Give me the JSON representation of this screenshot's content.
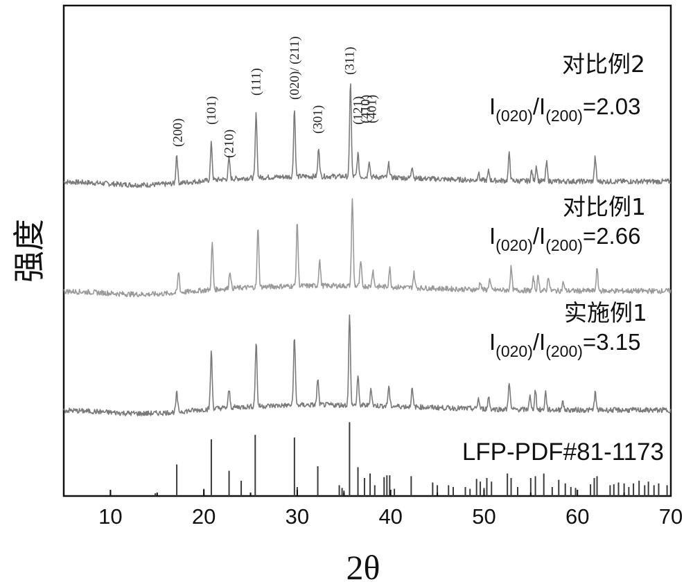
{
  "chart_data": {
    "type": "line",
    "title": "",
    "xlabel": "2θ",
    "ylabel": "强度",
    "xlim": [
      5,
      70
    ],
    "xticks": [
      10,
      20,
      30,
      40,
      50,
      60,
      70
    ],
    "grid": false,
    "peak_labels": [
      {
        "text": "(200)",
        "x": 17.2
      },
      {
        "text": "(101)",
        "x": 20.8
      },
      {
        "text": "(210)",
        "x": 22.7
      },
      {
        "text": "(111)",
        "x": 25.6
      },
      {
        "text": "(020)/ (211)",
        "x": 29.7
      },
      {
        "text": "(301)",
        "x": 32.2
      },
      {
        "text": "(311)",
        "x": 35.6
      },
      {
        "text": "(121)",
        "x": 36.5
      },
      {
        "text": "(410)",
        "x": 37.3
      },
      {
        "text": "(401)",
        "x": 38.0
      }
    ],
    "series": [
      {
        "name": "对比例2",
        "ratio_label": {
          "prefix": "I",
          "sub1": "(020)",
          "mid": "/I",
          "sub2": "(200)",
          "value": "=2.03"
        },
        "color": "#7a7a7a",
        "peaks": [
          [
            17.1,
            0.28
          ],
          [
            20.8,
            0.36
          ],
          [
            22.7,
            0.2
          ],
          [
            25.6,
            0.62
          ],
          [
            29.7,
            0.65
          ],
          [
            32.3,
            0.28
          ],
          [
            35.7,
            0.92
          ],
          [
            36.5,
            0.22
          ],
          [
            37.7,
            0.16
          ],
          [
            39.8,
            0.13
          ],
          [
            42.3,
            0.12
          ],
          [
            49.4,
            0.07
          ],
          [
            50.5,
            0.09
          ],
          [
            52.7,
            0.26
          ],
          [
            55.1,
            0.1
          ],
          [
            55.6,
            0.15
          ],
          [
            56.7,
            0.18
          ],
          [
            61.9,
            0.23
          ]
        ]
      },
      {
        "name": "对比例1",
        "ratio_label": {
          "prefix": "I",
          "sub1": "(020)",
          "mid": "/I",
          "sub2": "(200)",
          "value": "=2.66"
        },
        "color": "#9a9a9a",
        "peaks": [
          [
            17.3,
            0.2
          ],
          [
            20.9,
            0.45
          ],
          [
            22.8,
            0.17
          ],
          [
            25.8,
            0.58
          ],
          [
            30.0,
            0.62
          ],
          [
            32.4,
            0.25
          ],
          [
            35.9,
            0.85
          ],
          [
            36.8,
            0.23
          ],
          [
            38.1,
            0.16
          ],
          [
            39.9,
            0.18
          ],
          [
            42.5,
            0.14
          ],
          [
            49.6,
            0.08
          ],
          [
            50.6,
            0.1
          ],
          [
            52.9,
            0.22
          ],
          [
            55.3,
            0.12
          ],
          [
            55.8,
            0.14
          ],
          [
            56.9,
            0.14
          ],
          [
            58.5,
            0.08
          ],
          [
            62.1,
            0.21
          ]
        ]
      },
      {
        "name": "实施例1",
        "ratio_label": {
          "prefix": "I",
          "sub1": "(020)",
          "mid": "/I",
          "sub2": "(200)",
          "value": "=3.15"
        },
        "color": "#7a7a7a",
        "peaks": [
          [
            17.1,
            0.18
          ],
          [
            20.8,
            0.55
          ],
          [
            22.7,
            0.17
          ],
          [
            25.6,
            0.62
          ],
          [
            29.7,
            0.67
          ],
          [
            32.2,
            0.25
          ],
          [
            35.6,
            0.87
          ],
          [
            36.5,
            0.28
          ],
          [
            37.9,
            0.17
          ],
          [
            39.8,
            0.19
          ],
          [
            42.3,
            0.17
          ],
          [
            49.4,
            0.1
          ],
          [
            50.5,
            0.12
          ],
          [
            52.7,
            0.27
          ],
          [
            54.9,
            0.13
          ],
          [
            55.5,
            0.19
          ],
          [
            56.6,
            0.17
          ],
          [
            58.4,
            0.09
          ],
          [
            61.9,
            0.17
          ]
        ]
      }
    ],
    "reference": {
      "name": "LFP-PDF#81-1173",
      "color": "#3a3a3a",
      "peaks": [
        [
          10.0,
          0.06
        ],
        [
          14.8,
          0.03
        ],
        [
          17.1,
          0.35
        ],
        [
          20.0,
          0.08
        ],
        [
          20.8,
          0.63
        ],
        [
          22.7,
          0.28
        ],
        [
          24.0,
          0.17
        ],
        [
          25.0,
          0.03
        ],
        [
          25.5,
          0.68
        ],
        [
          29.7,
          0.65
        ],
        [
          30.0,
          0.1
        ],
        [
          32.2,
          0.33
        ],
        [
          34.5,
          0.12
        ],
        [
          34.8,
          0.09
        ],
        [
          35.0,
          0.06
        ],
        [
          35.6,
          0.82
        ],
        [
          36.5,
          0.32
        ],
        [
          37.2,
          0.2
        ],
        [
          37.8,
          0.25
        ],
        [
          38.3,
          0.12
        ],
        [
          39.3,
          0.21
        ],
        [
          39.6,
          0.23
        ],
        [
          39.9,
          0.23
        ],
        [
          40.4,
          0.08
        ],
        [
          42.2,
          0.22
        ],
        [
          44.5,
          0.15
        ],
        [
          45.0,
          0.12
        ],
        [
          46.2,
          0.12
        ],
        [
          46.7,
          0.1
        ],
        [
          48.0,
          0.1
        ],
        [
          48.5,
          0.08
        ],
        [
          49.2,
          0.19
        ],
        [
          49.6,
          0.16
        ],
        [
          50.0,
          0.09
        ],
        [
          50.3,
          0.2
        ],
        [
          50.8,
          0.16
        ],
        [
          52.5,
          0.25
        ],
        [
          52.9,
          0.2
        ],
        [
          53.6,
          0.1
        ],
        [
          55.0,
          0.2
        ],
        [
          55.5,
          0.22
        ],
        [
          56.4,
          0.25
        ],
        [
          57.3,
          0.1
        ],
        [
          58.0,
          0.18
        ],
        [
          58.7,
          0.14
        ],
        [
          59.3,
          0.1
        ],
        [
          59.8,
          0.09
        ],
        [
          61.4,
          0.13
        ],
        [
          61.8,
          0.2
        ],
        [
          62.1,
          0.22
        ],
        [
          63.5,
          0.12
        ],
        [
          63.9,
          0.13
        ],
        [
          64.4,
          0.15
        ],
        [
          65.0,
          0.14
        ],
        [
          65.5,
          0.1
        ],
        [
          66.0,
          0.14
        ],
        [
          66.6,
          0.17
        ],
        [
          67.2,
          0.12
        ],
        [
          67.6,
          0.16
        ],
        [
          68.2,
          0.12
        ],
        [
          68.7,
          0.14
        ],
        [
          69.6,
          0.12
        ]
      ]
    }
  }
}
